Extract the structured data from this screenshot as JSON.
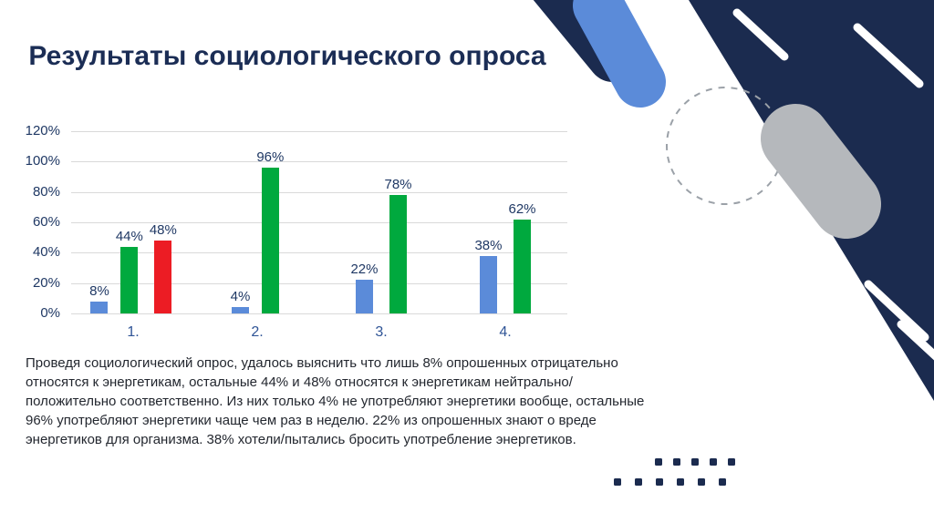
{
  "slide": {
    "title": "Результаты социологического опроса",
    "paragraph": "Проведя социологический опрос, удалось выяснить что лишь 8% опрошенных отрицательно относятся к энергетикам, остальные 44% и 48% относятся к энергетикам нейтрально/положительно соответственно. Из них только 4% не употребляют энергетики вообще, остальные 96% употребляют энергетики чаще чем раз в неделю. 22% из опрошенных знают о вреде энергетиков для организма. 38% хотели/пытались бросить употребление энергетиков."
  },
  "chart_data": {
    "type": "bar",
    "title": "",
    "categories": [
      "1.",
      "2.",
      "3.",
      "4."
    ],
    "series": [
      {
        "name": "negative",
        "color": "#5B8BD9",
        "values": [
          8,
          4,
          22,
          38
        ]
      },
      {
        "name": "neutral",
        "color": "#00A93E",
        "values": [
          44,
          96,
          78,
          62
        ]
      },
      {
        "name": "positive",
        "color": "#EC1C24",
        "values": [
          48,
          null,
          null,
          null
        ]
      }
    ],
    "y_ticks": [
      "120%",
      "100%",
      "80%",
      "60%",
      "40%",
      "20%",
      "0%"
    ],
    "ylim": [
      0,
      120
    ],
    "grid": true,
    "data_labels": true,
    "legend_position": "none"
  },
  "colors": {
    "navy": "#1B2B4F",
    "accent_blue": "#5B8BD9",
    "decor_gray": "#B5B8BC",
    "bar_blue": "#5B8BD9",
    "bar_green": "#00A93E",
    "bar_red": "#EC1C24",
    "grid_gray": "#D9D9D9",
    "axis_text": "#1F3864"
  }
}
